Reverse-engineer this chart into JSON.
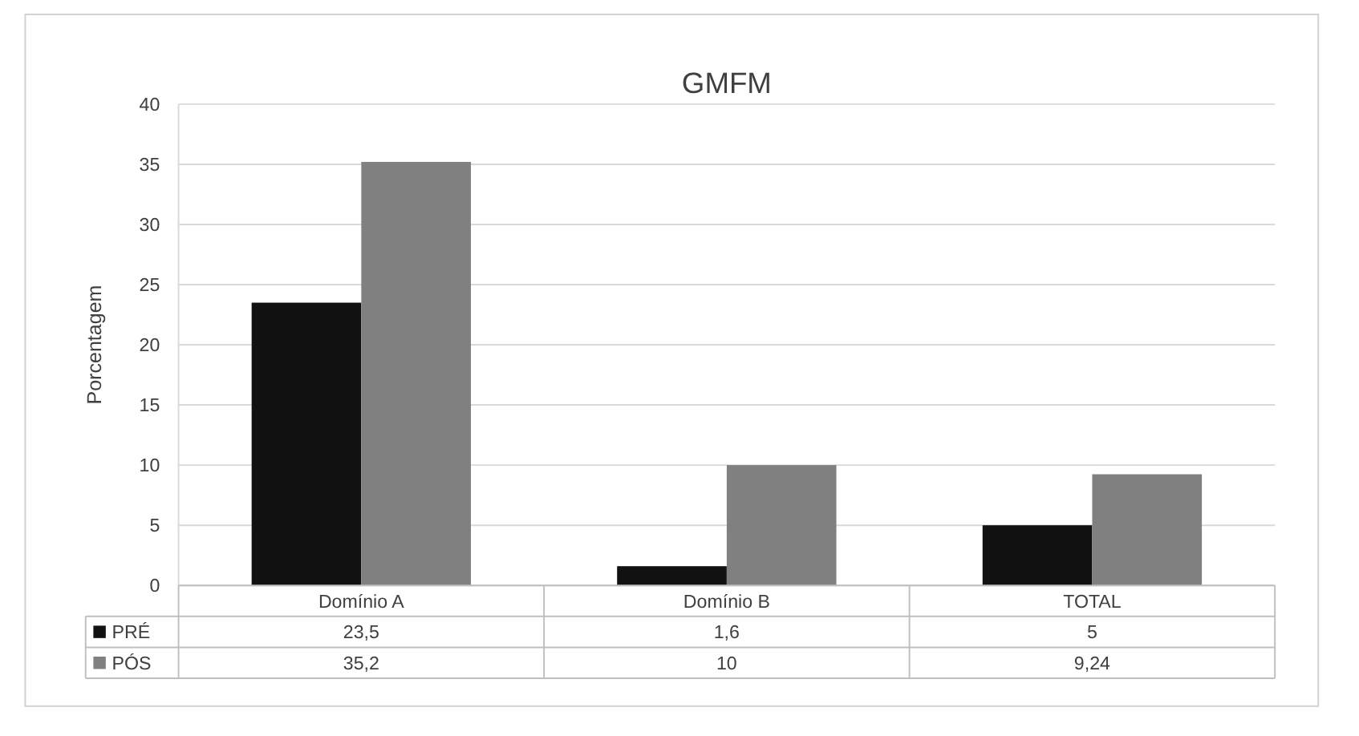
{
  "chart_data": {
    "type": "bar",
    "title": "GMFM",
    "ylabel": "Porcentagem",
    "categories": [
      "Domínio A",
      "Domínio B",
      "TOTAL"
    ],
    "series": [
      {
        "name": "PRÉ",
        "color": "#111111",
        "values": [
          23.5,
          1.6,
          5
        ],
        "value_labels": [
          "23,5",
          "1,6",
          "5"
        ]
      },
      {
        "name": "PÓS",
        "color": "#808080",
        "values": [
          35.2,
          10,
          9.24
        ],
        "value_labels": [
          "35,2",
          "10",
          "9,24"
        ]
      }
    ],
    "ylim": [
      0,
      40
    ],
    "yticks": [
      0,
      5,
      10,
      15,
      20,
      25,
      30,
      35,
      40
    ],
    "grid": "y",
    "legend": "bottom"
  }
}
